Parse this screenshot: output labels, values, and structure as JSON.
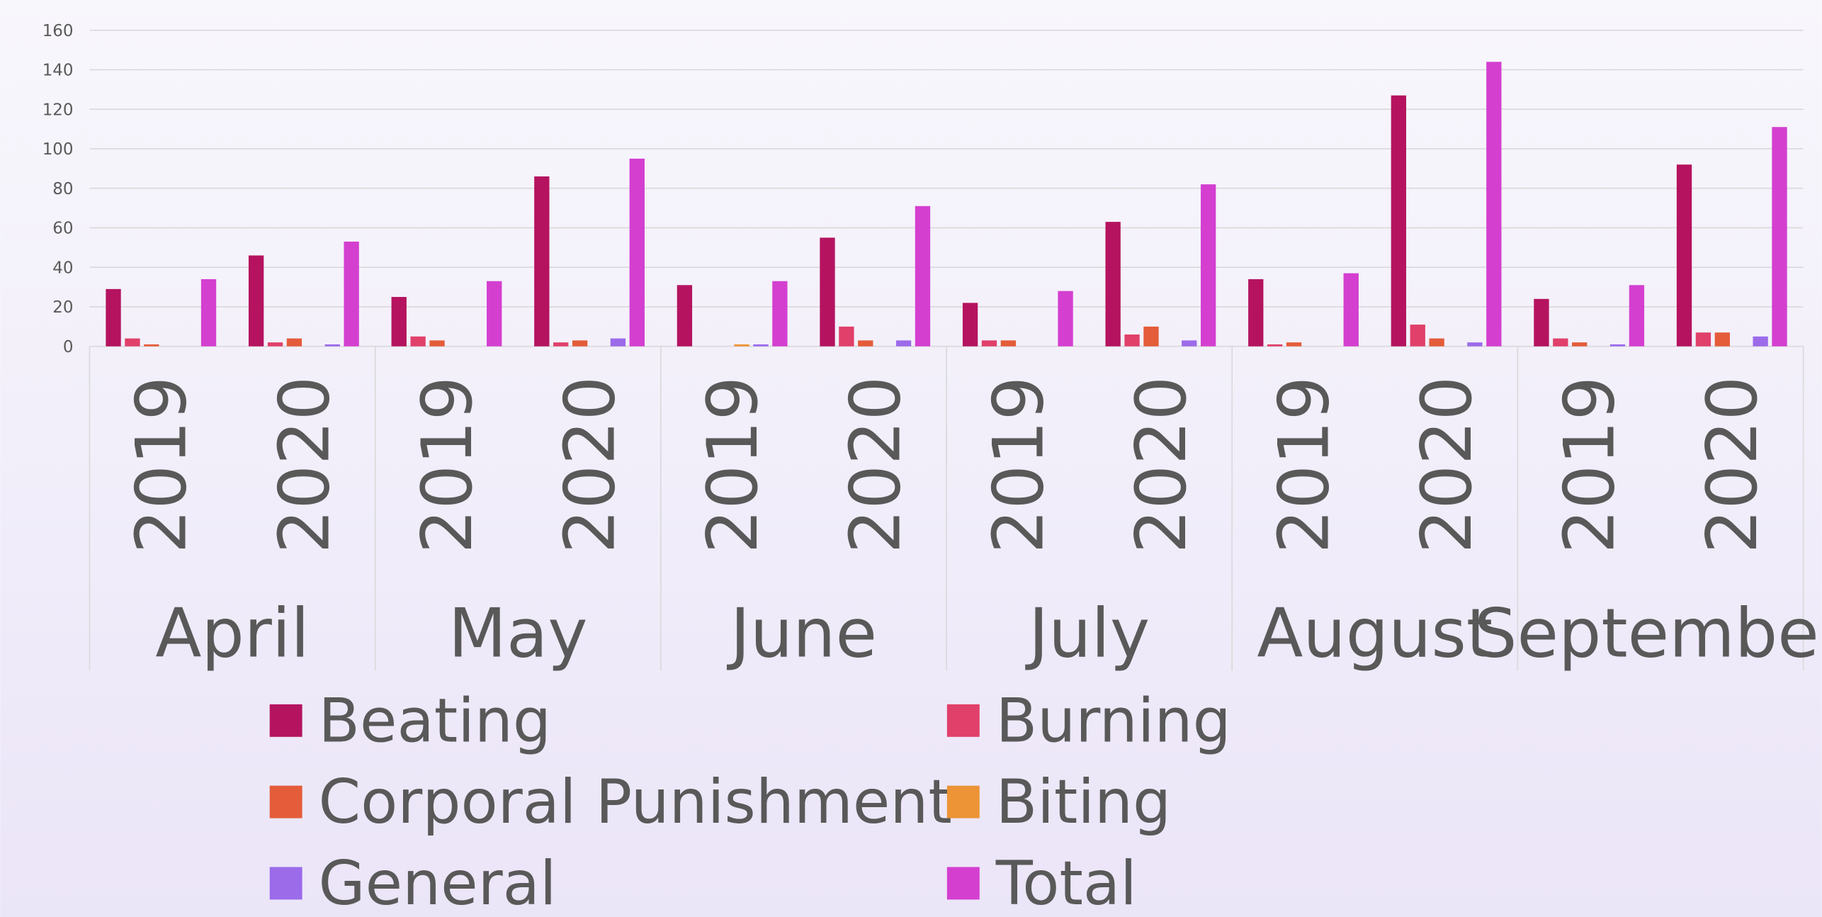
{
  "chart_data": {
    "type": "bar",
    "groups": [
      "April",
      "May",
      "June",
      "July",
      "August",
      "September"
    ],
    "categories": [
      "2019",
      "2020",
      "2019",
      "2020",
      "2019",
      "2020",
      "2019",
      "2020",
      "2019",
      "2020",
      "2019",
      "2020"
    ],
    "series": [
      {
        "name": "Beating",
        "color": "#b5135f",
        "values": [
          29,
          46,
          25,
          86,
          31,
          55,
          22,
          63,
          34,
          127,
          24,
          92
        ]
      },
      {
        "name": "Burning",
        "color": "#e0406a",
        "values": [
          4,
          2,
          5,
          2,
          0,
          10,
          3,
          6,
          1,
          11,
          4,
          7
        ]
      },
      {
        "name": "Corporal Punishment",
        "color": "#e45c3a",
        "values": [
          1,
          4,
          3,
          3,
          0,
          3,
          3,
          10,
          2,
          4,
          2,
          7
        ]
      },
      {
        "name": "Biting",
        "color": "#ec9436",
        "values": [
          0,
          0,
          0,
          0,
          1,
          0,
          0,
          0,
          0,
          0,
          0,
          0
        ]
      },
      {
        "name": "General",
        "color": "#9b6bea",
        "values": [
          0,
          1,
          0,
          4,
          1,
          3,
          0,
          3,
          0,
          2,
          1,
          5
        ]
      },
      {
        "name": "Total",
        "color": "#d43fd0",
        "values": [
          34,
          53,
          33,
          95,
          33,
          71,
          28,
          82,
          37,
          144,
          31,
          111
        ]
      }
    ],
    "ylim": [
      0,
      160
    ],
    "yticks": [
      0,
      20,
      40,
      60,
      80,
      100,
      120,
      140,
      160
    ],
    "grid": true
  }
}
